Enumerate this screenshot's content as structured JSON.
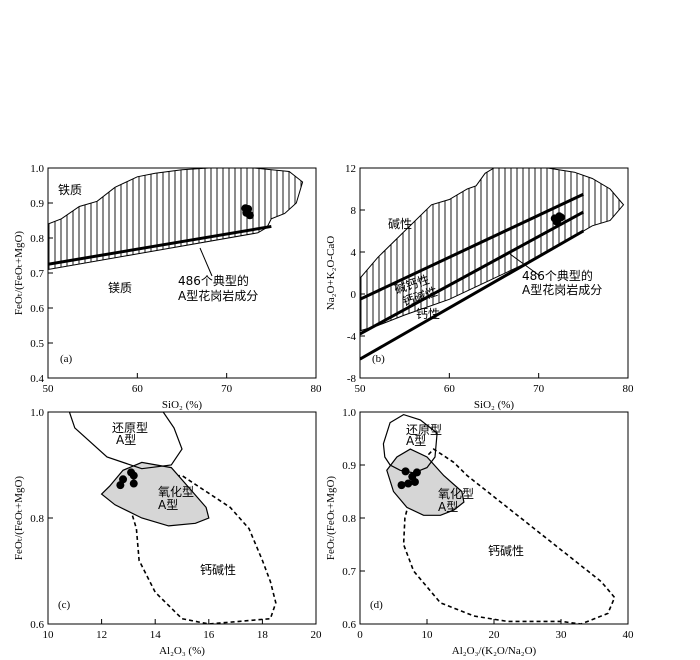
{
  "chart_data": [
    {
      "type": "scatter",
      "panel": "(a)",
      "xlabel": "SiO₂ (%)",
      "ylabel": "FeOₜ/(FeOₜ+MgO)",
      "xlim": [
        50,
        80
      ],
      "ylim": [
        0.4,
        1.0
      ],
      "xticks": [
        "50",
        "60",
        "70",
        "80"
      ],
      "yticks": [
        "0.4",
        "0.5",
        "0.6",
        "0.7",
        "0.8",
        "0.9",
        "1.0"
      ],
      "region_labels": [
        "铁质",
        "镁质"
      ],
      "field_label": [
        "486个典型的",
        "A型花岗岩成分"
      ],
      "boundary_line": [
        [
          50,
          0.725
        ],
        [
          75,
          0.833
        ]
      ],
      "field_polygon": [
        [
          50,
          0.84
        ],
        [
          51.5,
          0.855
        ],
        [
          53.5,
          0.89
        ],
        [
          55.5,
          0.905
        ],
        [
          57.5,
          0.945
        ],
        [
          60,
          0.975
        ],
        [
          62,
          0.985
        ],
        [
          65,
          0.995
        ],
        [
          68,
          1.0
        ],
        [
          73,
          1.0
        ],
        [
          77,
          0.99
        ],
        [
          78.5,
          0.96
        ],
        [
          77.8,
          0.9
        ],
        [
          76.5,
          0.87
        ],
        [
          75,
          0.855
        ],
        [
          74.5,
          0.83
        ],
        [
          73.5,
          0.815
        ],
        [
          50,
          0.71
        ]
      ],
      "points": [
        [
          72.1,
          0.885
        ],
        [
          72.4,
          0.883
        ],
        [
          72.2,
          0.872
        ],
        [
          72.6,
          0.865
        ],
        [
          72.3,
          0.878
        ]
      ]
    },
    {
      "type": "scatter",
      "panel": "(b)",
      "xlabel": "SiO₂ (%)",
      "ylabel": "Na₂O+K₂O-CaO",
      "xlim": [
        50,
        80
      ],
      "ylim": [
        -8,
        12
      ],
      "xticks": [
        "50",
        "60",
        "70",
        "80"
      ],
      "yticks": [
        "-8",
        "-4",
        "0",
        "4",
        "8",
        "12"
      ],
      "region_labels": [
        "碱性",
        "碱钙性",
        "钙碱性",
        "钙性"
      ],
      "field_label": [
        "486个典型的",
        "A型花岗岩成分"
      ],
      "boundary_lines": [
        [
          [
            50,
            -0.5
          ],
          [
            75,
            9.5
          ]
        ],
        [
          [
            50,
            -3.8
          ],
          [
            75,
            7.8
          ]
        ],
        [
          [
            50,
            -6.2
          ],
          [
            75,
            6.0
          ]
        ]
      ],
      "field_polygon": [
        [
          50,
          1.5
        ],
        [
          52,
          3.5
        ],
        [
          55,
          6
        ],
        [
          58,
          8.5
        ],
        [
          60,
          9
        ],
        [
          62,
          10
        ],
        [
          63,
          10.3
        ],
        [
          64,
          11.5
        ],
        [
          65,
          12
        ],
        [
          71,
          12
        ],
        [
          74,
          11.6
        ],
        [
          76,
          11
        ],
        [
          78,
          10
        ],
        [
          79.5,
          8.5
        ],
        [
          78,
          7
        ],
        [
          76,
          6.5
        ],
        [
          74,
          5.5
        ],
        [
          70,
          3.5
        ],
        [
          65,
          1.5
        ],
        [
          60,
          -0.5
        ],
        [
          55,
          -2
        ],
        [
          52,
          -3
        ],
        [
          50,
          -3.5
        ]
      ],
      "points": [
        [
          71.8,
          7.2
        ],
        [
          72.3,
          7.4
        ],
        [
          72.1,
          7.0
        ],
        [
          72.5,
          7.3
        ],
        [
          72.0,
          6.9
        ]
      ]
    },
    {
      "type": "scatter",
      "panel": "(c)",
      "xlabel": "Al₂O₃ (%)",
      "ylabel": "FeOₜ/(FeOₜ+MgO)",
      "xlim": [
        10,
        20
      ],
      "ylim": [
        0.6,
        1.0
      ],
      "xticks": [
        "10",
        "12",
        "14",
        "16",
        "18",
        "20"
      ],
      "yticks": [
        "0.6",
        "0.8",
        "1.0"
      ],
      "field_labels": {
        "reduced": [
          "还原型",
          "A型"
        ],
        "oxidized": [
          "氧化型",
          "A型"
        ],
        "calc_alkaline": "钙碱性"
      },
      "reduced_field": [
        [
          10.8,
          1.0
        ],
        [
          14.3,
          1.0
        ],
        [
          14.7,
          0.97
        ],
        [
          15,
          0.93
        ],
        [
          14.6,
          0.9
        ],
        [
          13.5,
          0.893
        ],
        [
          12.2,
          0.915
        ],
        [
          11,
          0.97
        ]
      ],
      "oxidized_field": [
        [
          12,
          0.845
        ],
        [
          12.3,
          0.86
        ],
        [
          12.8,
          0.89
        ],
        [
          13.5,
          0.905
        ],
        [
          14.6,
          0.895
        ],
        [
          15.3,
          0.855
        ],
        [
          15.9,
          0.82
        ],
        [
          16,
          0.8
        ],
        [
          15.5,
          0.79
        ],
        [
          14.5,
          0.785
        ],
        [
          13.5,
          0.8
        ],
        [
          12.5,
          0.825
        ]
      ],
      "calc_alkaline_field": [
        [
          12.7,
          0.85
        ],
        [
          13,
          0.875
        ],
        [
          15,
          0.88
        ],
        [
          16.8,
          0.82
        ],
        [
          17.5,
          0.78
        ],
        [
          18,
          0.72
        ],
        [
          18.3,
          0.68
        ],
        [
          18.5,
          0.64
        ],
        [
          18.3,
          0.61
        ],
        [
          16,
          0.6
        ],
        [
          15,
          0.61
        ],
        [
          14,
          0.66
        ],
        [
          13.4,
          0.72
        ],
        [
          13.3,
          0.78
        ],
        [
          13,
          0.83
        ]
      ],
      "points": [
        [
          13.1,
          0.886
        ],
        [
          13.2,
          0.88
        ],
        [
          12.8,
          0.873
        ],
        [
          13.2,
          0.865
        ],
        [
          12.7,
          0.862
        ]
      ]
    },
    {
      "type": "scatter",
      "panel": "(d)",
      "xlabel": "Al₂O₃/(K₂O/Na₂O)",
      "ylabel": "FeOₜ/(FeOₜ+MgO)",
      "xlim": [
        0,
        40
      ],
      "ylim": [
        0.6,
        1.0
      ],
      "xticks": [
        "0",
        "10",
        "20",
        "30",
        "40"
      ],
      "yticks": [
        "0.6",
        "0.7",
        "0.8",
        "0.9",
        "1.0"
      ],
      "field_labels": {
        "reduced": [
          "还原型",
          "A型"
        ],
        "oxidized": [
          "氧化型",
          "A型"
        ],
        "calc_alkaline": "钙碱性"
      },
      "reduced_field": [
        [
          3.5,
          0.94
        ],
        [
          4.5,
          0.98
        ],
        [
          6.5,
          0.995
        ],
        [
          9,
          0.985
        ],
        [
          11.5,
          0.96
        ],
        [
          11.2,
          0.915
        ],
        [
          10,
          0.895
        ],
        [
          8,
          0.885
        ],
        [
          6,
          0.89
        ],
        [
          4.5,
          0.9
        ],
        [
          3.7,
          0.915
        ]
      ],
      "oxidized_field": [
        [
          4,
          0.89
        ],
        [
          5.5,
          0.915
        ],
        [
          7.5,
          0.93
        ],
        [
          10,
          0.915
        ],
        [
          12.5,
          0.88
        ],
        [
          15.2,
          0.85
        ],
        [
          15.5,
          0.83
        ],
        [
          14,
          0.815
        ],
        [
          12,
          0.805
        ],
        [
          9.5,
          0.805
        ],
        [
          7,
          0.82
        ],
        [
          5,
          0.85
        ]
      ],
      "calc_alkaline_field": [
        [
          9.5,
          0.91
        ],
        [
          11,
          0.93
        ],
        [
          14,
          0.905
        ],
        [
          16,
          0.88
        ],
        [
          18,
          0.86
        ],
        [
          22,
          0.82
        ],
        [
          27,
          0.77
        ],
        [
          32,
          0.72
        ],
        [
          36,
          0.68
        ],
        [
          38,
          0.65
        ],
        [
          37,
          0.62
        ],
        [
          33,
          0.6
        ],
        [
          30,
          0.605
        ],
        [
          22,
          0.605
        ],
        [
          17,
          0.615
        ],
        [
          12,
          0.64
        ],
        [
          8,
          0.7
        ],
        [
          6.5,
          0.75
        ],
        [
          6.7,
          0.8
        ],
        [
          7.5,
          0.84
        ],
        [
          8,
          0.88
        ]
      ],
      "points": [
        [
          6.8,
          0.888
        ],
        [
          8.5,
          0.886
        ],
        [
          7.8,
          0.878
        ],
        [
          6.2,
          0.862
        ],
        [
          7.2,
          0.865
        ],
        [
          8.2,
          0.868
        ]
      ]
    }
  ]
}
